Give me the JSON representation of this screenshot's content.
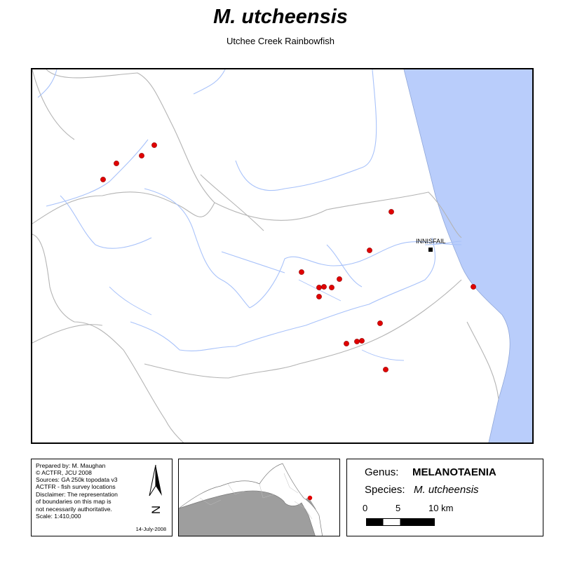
{
  "title": "M. utcheensis",
  "subtitle": "Utchee Creek Rainbowfish",
  "map": {
    "town_label": "INNISFAIL",
    "colors": {
      "ocean": "#b9cdfb",
      "river": "#a8c2fa",
      "boundary": "#b0b0b0",
      "survey_point": "#e00000"
    }
  },
  "credits": {
    "lines": [
      "Prepared  by:  M.  Maughan",
      "©      ACTFR,      JCU      2008",
      "Sources: GA 250k topodata v3",
      "ACTFR - fish survey locations",
      "Disclaimer: The representation",
      "of boundaries on this map is",
      "not   necessarily   authoritative.",
      "Scale: 1:410,000"
    ],
    "date": "14-July-2008",
    "north_arrow_letter": "N"
  },
  "info": {
    "genus_label": "Genus:",
    "genus_value": "MELANOTAENIA",
    "species_label": "Species:",
    "species_value": "M. utcheensis",
    "scale_labels": [
      "0",
      "5",
      "10 km"
    ]
  }
}
